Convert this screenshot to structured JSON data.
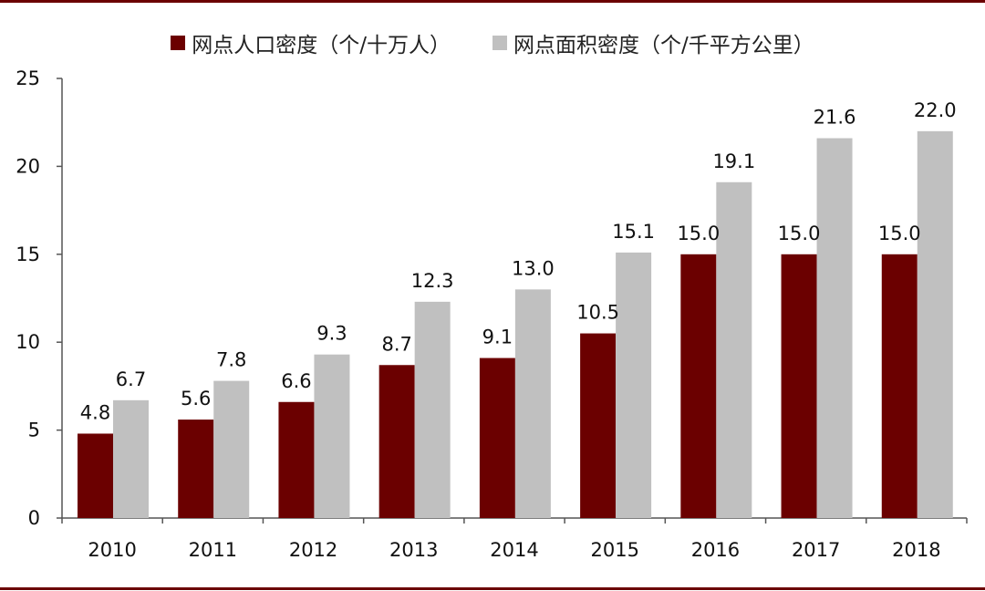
{
  "colors": {
    "frame": "#6b0000",
    "series_population": "#6b0000",
    "series_area": "#c0c0c0",
    "axis": "#555555"
  },
  "chart_data": {
    "type": "bar",
    "categories": [
      "2010",
      "2011",
      "2012",
      "2013",
      "2014",
      "2015",
      "2016",
      "2017",
      "2018"
    ],
    "series": [
      {
        "name": "网点人口密度（个/十万人）",
        "values": [
          4.8,
          5.6,
          6.6,
          8.7,
          9.1,
          10.5,
          15.0,
          15.0,
          15.0
        ],
        "labels": [
          "4.8",
          "5.6",
          "6.6",
          "8.7",
          "9.1",
          "10.5",
          "15.0",
          "15.0",
          "15.0"
        ]
      },
      {
        "name": "网点面积密度（个/千平方公里）",
        "values": [
          6.7,
          7.8,
          9.3,
          12.3,
          13.0,
          15.1,
          19.1,
          21.6,
          22.0
        ],
        "labels": [
          "6.7",
          "7.8",
          "9.3",
          "12.3",
          "13.0",
          "15.1",
          "19.1",
          "21.6",
          "22.0"
        ]
      }
    ],
    "ylim": [
      0,
      25
    ],
    "yticks": [
      "0",
      "5",
      "10",
      "15",
      "20",
      "25"
    ],
    "legend": "top",
    "grid": false
  }
}
